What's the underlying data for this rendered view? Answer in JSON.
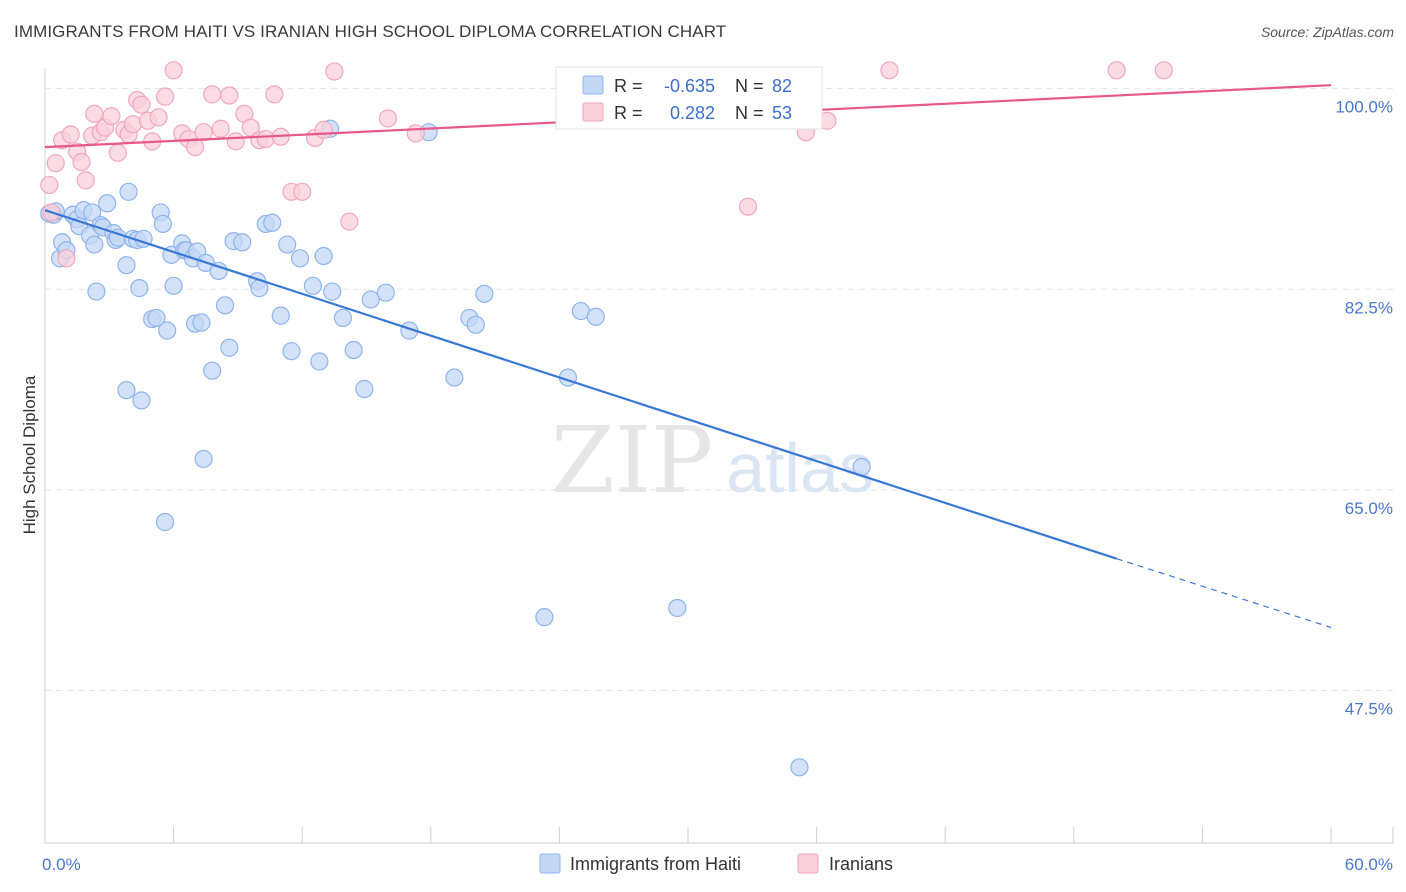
{
  "title": "IMMIGRANTS FROM HAITI VS IRANIAN HIGH SCHOOL DIPLOMA CORRELATION CHART",
  "source": "Source: ZipAtlas.com",
  "watermark": {
    "zip": "ZIP",
    "atlas": "atlas"
  },
  "legend": {
    "rows": [
      {
        "r_label": "R =",
        "r_value": "-0.635",
        "n_label": "N =",
        "n_value": "82",
        "color": "#8fb4ec",
        "fill": "#c4d8f6"
      },
      {
        "r_label": "R =",
        "r_value": "0.282",
        "n_label": "N =",
        "n_value": "53",
        "color": "#f2a7bd",
        "fill": "#f9d0dc"
      }
    ]
  },
  "bottom_legend": [
    {
      "label": "Immigrants from Haiti",
      "fill": "#c4d8f6",
      "stroke": "#8fb4ec"
    },
    {
      "label": "Iranians",
      "fill": "#f9d0dc",
      "stroke": "#f2a7bd"
    }
  ],
  "chart_data": {
    "type": "scatter",
    "title": "IMMIGRANTS FROM HAITI VS IRANIAN HIGH SCHOOL DIPLOMA CORRELATION CHART",
    "xlabel": "",
    "ylabel": "High School Diploma",
    "xlim": [
      0,
      60
    ],
    "ylim": [
      34.2,
      101.8
    ],
    "x_tick_labels": [
      "0.0%",
      "60.0%"
    ],
    "y_ticks": [
      {
        "value": 100.0,
        "label": "100.0%"
      },
      {
        "value": 82.5,
        "label": "82.5%"
      },
      {
        "value": 65.0,
        "label": "65.0%"
      },
      {
        "value": 47.5,
        "label": "47.5%"
      }
    ],
    "series": [
      {
        "name": "Immigrants from Haiti",
        "color": "#3a78d6",
        "point_fill": "#c4d8f6",
        "point_stroke": "#8fb4ec",
        "trend": {
          "x0": 0.0,
          "y0": 89.4,
          "x1": 50.0,
          "y1": 59.0,
          "dash_x1": 60.0,
          "dash_y1": 53.0
        },
        "points": [
          [
            0.2,
            89.1
          ],
          [
            0.4,
            89.0
          ],
          [
            0.5,
            89.3
          ],
          [
            0.7,
            85.2
          ],
          [
            0.8,
            86.6
          ],
          [
            1.0,
            85.9
          ],
          [
            1.3,
            89.0
          ],
          [
            1.5,
            88.6
          ],
          [
            1.6,
            88.0
          ],
          [
            1.8,
            89.4
          ],
          [
            2.1,
            87.2
          ],
          [
            2.2,
            89.2
          ],
          [
            2.3,
            86.4
          ],
          [
            2.4,
            82.3
          ],
          [
            2.6,
            88.1
          ],
          [
            2.7,
            87.9
          ],
          [
            2.9,
            90.0
          ],
          [
            3.2,
            87.4
          ],
          [
            3.3,
            86.8
          ],
          [
            3.4,
            87.0
          ],
          [
            3.8,
            84.6
          ],
          [
            3.9,
            91.0
          ],
          [
            4.1,
            86.9
          ],
          [
            4.3,
            86.8
          ],
          [
            4.4,
            82.6
          ],
          [
            4.6,
            86.9
          ],
          [
            5.0,
            79.9
          ],
          [
            5.2,
            80.0
          ],
          [
            5.4,
            89.2
          ],
          [
            5.5,
            88.2
          ],
          [
            5.7,
            78.9
          ],
          [
            5.9,
            85.5
          ],
          [
            6.0,
            82.8
          ],
          [
            6.4,
            86.5
          ],
          [
            6.5,
            85.9
          ],
          [
            6.6,
            85.9
          ],
          [
            6.9,
            85.2
          ],
          [
            7.1,
            85.8
          ],
          [
            7.0,
            79.5
          ],
          [
            7.3,
            79.6
          ],
          [
            7.5,
            84.8
          ],
          [
            7.8,
            75.4
          ],
          [
            8.1,
            84.1
          ],
          [
            8.4,
            81.1
          ],
          [
            8.6,
            77.4
          ],
          [
            8.8,
            86.7
          ],
          [
            9.2,
            86.6
          ],
          [
            9.9,
            83.2
          ],
          [
            10.0,
            82.6
          ],
          [
            10.3,
            88.2
          ],
          [
            10.6,
            88.3
          ],
          [
            11.0,
            80.2
          ],
          [
            11.3,
            86.4
          ],
          [
            11.5,
            77.1
          ],
          [
            11.9,
            85.2
          ],
          [
            12.5,
            82.8
          ],
          [
            12.8,
            76.2
          ],
          [
            13.0,
            85.4
          ],
          [
            13.4,
            82.3
          ],
          [
            13.9,
            80.0
          ],
          [
            14.4,
            77.2
          ],
          [
            14.9,
            73.8
          ],
          [
            15.2,
            81.6
          ],
          [
            15.9,
            82.2
          ],
          [
            17.0,
            78.9
          ],
          [
            17.9,
            96.2
          ],
          [
            3.8,
            73.7
          ],
          [
            4.5,
            72.8
          ],
          [
            7.4,
            67.7
          ],
          [
            5.6,
            62.2
          ],
          [
            19.1,
            74.8
          ],
          [
            19.8,
            80.0
          ],
          [
            20.1,
            79.4
          ],
          [
            20.5,
            82.1
          ],
          [
            24.4,
            74.8
          ],
          [
            25.0,
            80.6
          ],
          [
            25.7,
            80.1
          ],
          [
            23.3,
            53.9
          ],
          [
            29.5,
            54.7
          ],
          [
            35.2,
            40.8
          ],
          [
            38.1,
            67.0
          ],
          [
            13.3,
            96.5
          ]
        ]
      },
      {
        "name": "Iranians",
        "color": "#e8578a",
        "point_fill": "#f9d0dc",
        "point_stroke": "#f2a7bd",
        "trend": {
          "x0": 0.0,
          "y0": 94.9,
          "x1": 60.0,
          "y1": 100.3
        },
        "points": [
          [
            0.2,
            91.6
          ],
          [
            0.3,
            89.2
          ],
          [
            0.5,
            93.5
          ],
          [
            0.8,
            95.5
          ],
          [
            1.0,
            85.2
          ],
          [
            1.2,
            96.0
          ],
          [
            1.5,
            94.5
          ],
          [
            1.7,
            93.6
          ],
          [
            1.9,
            92.0
          ],
          [
            2.2,
            95.9
          ],
          [
            2.3,
            97.8
          ],
          [
            2.6,
            96.2
          ],
          [
            2.8,
            96.6
          ],
          [
            3.1,
            97.6
          ],
          [
            3.4,
            94.4
          ],
          [
            3.7,
            96.4
          ],
          [
            3.9,
            96.0
          ],
          [
            4.1,
            96.9
          ],
          [
            4.3,
            99.0
          ],
          [
            4.5,
            98.6
          ],
          [
            4.8,
            97.2
          ],
          [
            5.0,
            95.4
          ],
          [
            5.3,
            97.5
          ],
          [
            5.6,
            99.3
          ],
          [
            6.0,
            101.6
          ],
          [
            6.4,
            96.1
          ],
          [
            6.7,
            95.6
          ],
          [
            7.0,
            94.9
          ],
          [
            7.4,
            96.2
          ],
          [
            7.8,
            99.5
          ],
          [
            8.2,
            96.5
          ],
          [
            8.6,
            99.4
          ],
          [
            8.9,
            95.4
          ],
          [
            9.3,
            97.8
          ],
          [
            9.6,
            96.6
          ],
          [
            10.0,
            95.5
          ],
          [
            10.3,
            95.6
          ],
          [
            10.7,
            99.5
          ],
          [
            11.0,
            95.8
          ],
          [
            11.5,
            91.0
          ],
          [
            12.0,
            91.0
          ],
          [
            12.6,
            95.7
          ],
          [
            13.0,
            96.4
          ],
          [
            13.5,
            101.5
          ],
          [
            14.2,
            88.4
          ],
          [
            16.0,
            97.4
          ],
          [
            17.3,
            96.1
          ],
          [
            32.8,
            89.7
          ],
          [
            35.5,
            96.2
          ],
          [
            36.5,
            97.2
          ],
          [
            39.4,
            101.6
          ],
          [
            50.0,
            101.6
          ],
          [
            52.2,
            101.6
          ]
        ]
      }
    ]
  }
}
